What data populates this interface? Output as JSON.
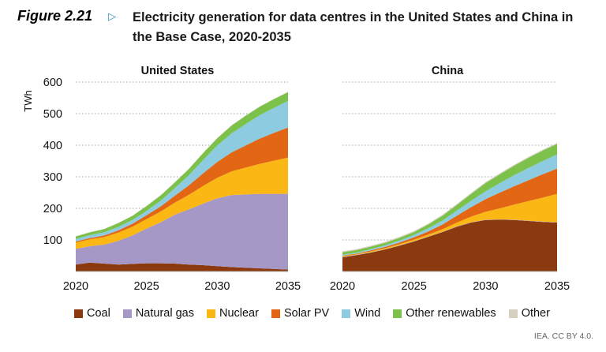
{
  "figure": {
    "number": "Figure 2.21",
    "title": "Electricity generation for data centres in the United States and China in the Base Case, 2020-2035",
    "credit": "IEA. CC BY 4.0."
  },
  "colors": {
    "Coal": "#8b3a10",
    "Natural gas": "#a597c6",
    "Nuclear": "#fbb814",
    "Solar PV": "#e26613",
    "Wind": "#8ccbe0",
    "Other renewables": "#7cc24a",
    "Other": "#d7d0c1"
  },
  "chart_data": [
    {
      "type": "area",
      "stacked": true,
      "title": "United States",
      "ylabel": "TWh",
      "xlabel": "",
      "x": [
        2020,
        2021,
        2022,
        2023,
        2024,
        2025,
        2026,
        2027,
        2028,
        2029,
        2030,
        2031,
        2032,
        2033,
        2034,
        2035
      ],
      "xticks": [
        2020,
        2025,
        2030,
        2035
      ],
      "yticks": [
        100,
        200,
        300,
        400,
        500,
        600
      ],
      "ylim": [
        0,
        600
      ],
      "grid": "horizontal dotted",
      "series": [
        {
          "name": "Coal",
          "values": [
            22,
            28,
            25,
            22,
            24,
            26,
            26,
            25,
            22,
            20,
            17,
            14,
            12,
            10,
            8,
            6
          ]
        },
        {
          "name": "Natural gas",
          "values": [
            50,
            52,
            60,
            75,
            90,
            110,
            130,
            155,
            175,
            195,
            215,
            228,
            232,
            236,
            238,
            240
          ]
        },
        {
          "name": "Nuclear",
          "values": [
            20,
            22,
            24,
            26,
            28,
            30,
            34,
            38,
            46,
            56,
            65,
            75,
            85,
            95,
            105,
            115
          ]
        },
        {
          "name": "Solar PV",
          "values": [
            3,
            4,
            5,
            7,
            9,
            12,
            16,
            22,
            30,
            40,
            50,
            60,
            70,
            80,
            88,
            95
          ]
        },
        {
          "name": "Wind",
          "values": [
            8,
            9,
            10,
            11,
            12,
            14,
            18,
            24,
            32,
            42,
            52,
            60,
            68,
            74,
            79,
            84
          ]
        },
        {
          "name": "Other renewables",
          "values": [
            8,
            9,
            10,
            12,
            13,
            15,
            17,
            18,
            20,
            22,
            23,
            25,
            26,
            27,
            28,
            28
          ]
        },
        {
          "name": "Other",
          "values": [
            1,
            1,
            1,
            1,
            1,
            1,
            1,
            1,
            1,
            1,
            1,
            1,
            1,
            1,
            1,
            1
          ]
        }
      ]
    },
    {
      "type": "area",
      "stacked": true,
      "title": "China",
      "x": [
        2020,
        2021,
        2022,
        2023,
        2024,
        2025,
        2026,
        2027,
        2028,
        2029,
        2030,
        2031,
        2032,
        2033,
        2034,
        2035
      ],
      "xticks": [
        2020,
        2025,
        2030,
        2035
      ],
      "ylim": [
        0,
        600
      ],
      "grid": "horizontal dotted",
      "series": [
        {
          "name": "Coal",
          "values": [
            45,
            52,
            60,
            70,
            82,
            95,
            110,
            125,
            142,
            155,
            163,
            164,
            163,
            160,
            157,
            155
          ]
        },
        {
          "name": "Natural gas",
          "values": [
            1,
            1,
            1,
            1,
            1,
            1,
            1,
            1,
            1,
            1,
            1,
            1,
            1,
            1,
            1,
            1
          ]
        },
        {
          "name": "Nuclear",
          "values": [
            2,
            2,
            3,
            3,
            4,
            5,
            6,
            8,
            12,
            18,
            25,
            35,
            48,
            62,
            76,
            90
          ]
        },
        {
          "name": "Solar PV",
          "values": [
            2,
            2,
            3,
            4,
            5,
            7,
            10,
            15,
            22,
            30,
            40,
            50,
            58,
            66,
            74,
            80
          ]
        },
        {
          "name": "Wind",
          "values": [
            3,
            3,
            4,
            5,
            6,
            8,
            10,
            13,
            16,
            20,
            25,
            30,
            35,
            39,
            42,
            45
          ]
        },
        {
          "name": "Other renewables",
          "values": [
            8,
            8,
            8,
            8,
            9,
            9,
            12,
            15,
            18,
            22,
            26,
            28,
            30,
            32,
            33,
            33
          ]
        },
        {
          "name": "Other",
          "values": [
            3,
            3,
            3,
            3,
            3,
            3,
            3,
            3,
            3,
            3,
            3,
            3,
            3,
            3,
            3,
            3
          ]
        }
      ]
    }
  ]
}
